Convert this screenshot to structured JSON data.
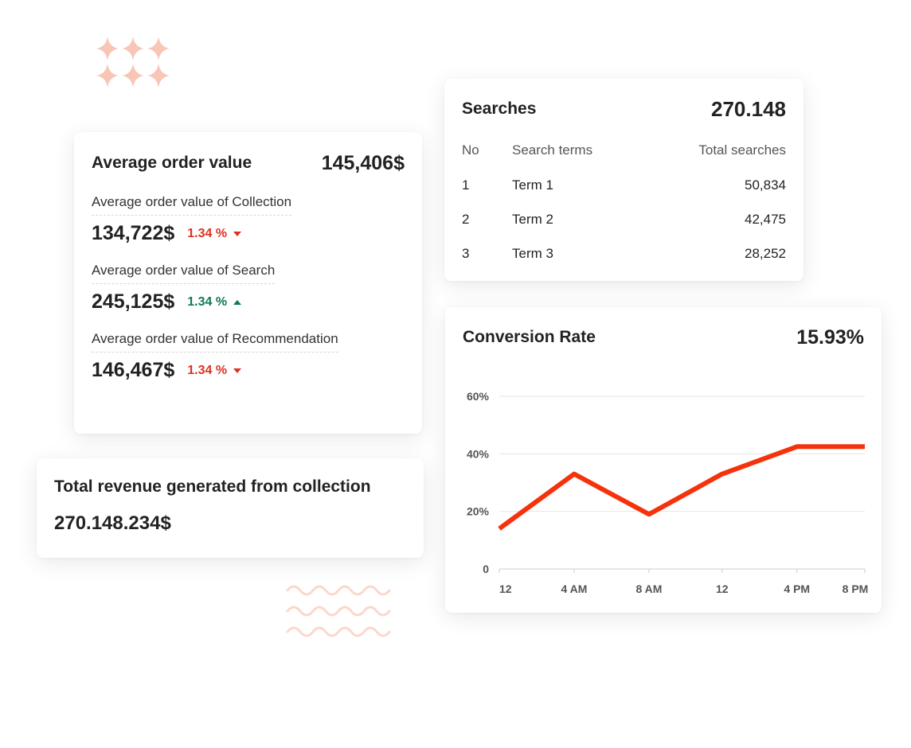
{
  "decorations": {
    "sparkles_icon": "four-point-star-icon",
    "waves_icon": "wave-line-icon",
    "accent_color": "#f8c6b7"
  },
  "average_order_value": {
    "title": "Average order value",
    "value": "145,406$",
    "items": [
      {
        "label": "Average order value of Collection",
        "value": "134,722$",
        "delta": "1.34 %",
        "direction": "down"
      },
      {
        "label": "Average order value of Search",
        "value": "245,125$",
        "delta": "1.34 %",
        "direction": "up"
      },
      {
        "label": "Average order value of Recommendation",
        "value": "146,467$",
        "delta": "1.34 %",
        "direction": "down"
      }
    ],
    "down_color": "#e0301e",
    "up_color": "#0e7a55"
  },
  "total_revenue": {
    "title": "Total revenue generated from collection",
    "value": "270.148.234$"
  },
  "searches": {
    "title": "Searches",
    "value": "270.148",
    "columns": [
      "No",
      "Search terms",
      "Total searches"
    ],
    "rows": [
      [
        "1",
        "Term 1",
        "50,834"
      ],
      [
        "2",
        "Term 2",
        "42,475"
      ],
      [
        "3",
        "Term 3",
        "28,252"
      ]
    ]
  },
  "conversion_rate": {
    "title": "Conversion Rate",
    "value": "15.93%"
  },
  "chart_data": {
    "type": "line",
    "x": [
      "12",
      "4 AM",
      "8 AM",
      "12",
      "4 PM",
      "8 PM"
    ],
    "y_ticks": [
      "0",
      "20%",
      "40%",
      "60%"
    ],
    "ylim": [
      0,
      60
    ],
    "x_range": [
      0,
      21
    ],
    "series": [
      {
        "color": "#f5320c",
        "points": [
          [
            0,
            14
          ],
          [
            4.3,
            33
          ],
          [
            8.6,
            19
          ],
          [
            12.8,
            33
          ],
          [
            17.1,
            42.5
          ],
          [
            21,
            42.5
          ]
        ]
      }
    ],
    "grid": true
  }
}
